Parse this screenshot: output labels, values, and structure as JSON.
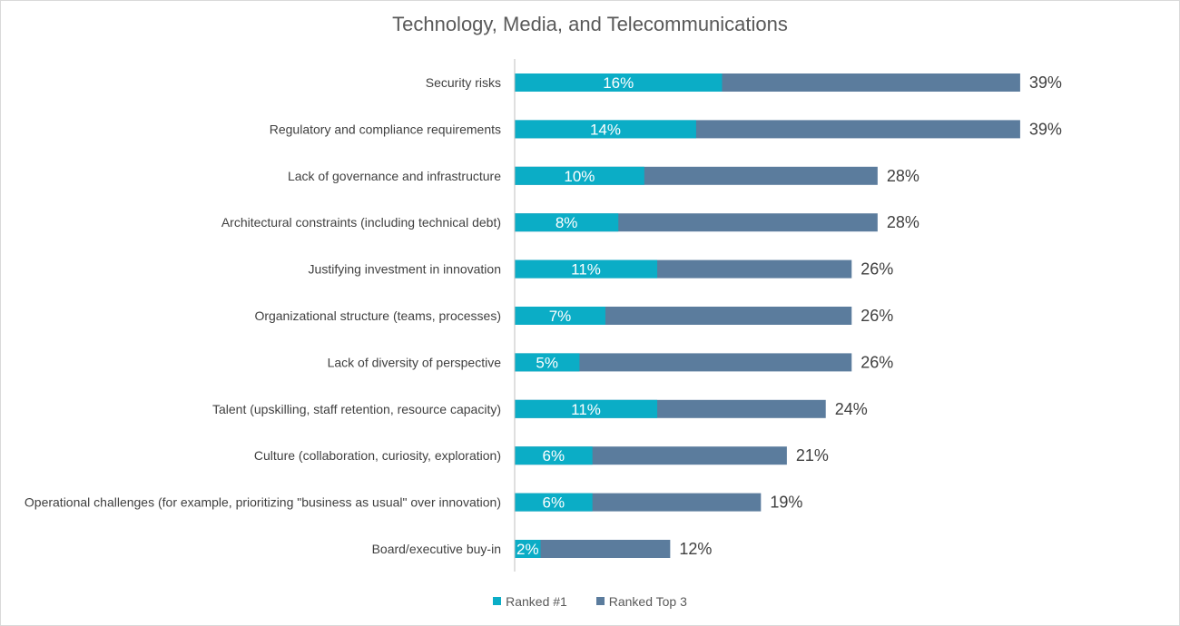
{
  "chart_data": {
    "type": "bar",
    "orientation": "horizontal",
    "title": "Technology, Media, and Telecommunications",
    "categories": [
      "Security risks",
      "Regulatory and compliance requirements",
      "Lack of governance and infrastructure",
      "Architectural constraints (including technical debt)",
      "Justifying investment in innovation",
      "Organizational structure (teams, processes)",
      "Lack of diversity of perspective",
      "Talent (upskilling, staff retention, resource capacity)",
      "Culture (collaboration, curiosity, exploration)",
      "Operational challenges (for example, prioritizing \"business as usual\" over innovation)",
      "Board/executive buy-in"
    ],
    "series": [
      {
        "name": "Ranked #1",
        "color": "#0BADC6",
        "values": [
          16,
          14,
          10,
          8,
          11,
          7,
          5,
          11,
          6,
          6,
          2
        ],
        "labels": [
          "16%",
          "14%",
          "10%",
          "8%",
          "11%",
          "7%",
          "5%",
          "11%",
          "6%",
          "6%",
          "2%"
        ]
      },
      {
        "name": "Ranked Top 3",
        "color": "#5B7C9D",
        "values": [
          39,
          39,
          28,
          28,
          26,
          26,
          26,
          24,
          21,
          19,
          12
        ],
        "labels": [
          "39%",
          "39%",
          "28%",
          "28%",
          "26%",
          "26%",
          "26%",
          "24%",
          "21%",
          "19%",
          "12%"
        ]
      }
    ],
    "xlim": [
      0,
      39
    ],
    "grid": false,
    "legend_position": "bottom"
  }
}
